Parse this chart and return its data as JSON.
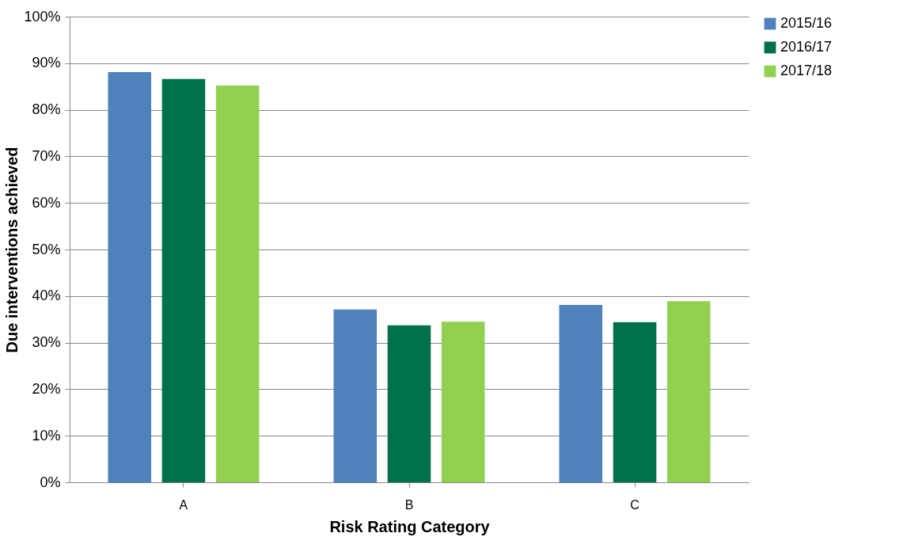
{
  "chart_data": {
    "type": "bar",
    "xlabel": "Risk Rating Category",
    "ylabel": "Due interventions achieved",
    "categories": [
      "A",
      "B",
      "C"
    ],
    "series": [
      {
        "name": "2015/16",
        "color": "#4f81bd",
        "values": [
          88.1,
          37.1,
          38.1
        ]
      },
      {
        "name": "2016/17",
        "color": "#00704a",
        "values": [
          86.6,
          33.7,
          34.4
        ]
      },
      {
        "name": "2017/18",
        "color": "#92d050",
        "values": [
          85.2,
          34.5,
          38.9
        ]
      }
    ],
    "ylim": [
      0,
      100
    ],
    "yticks": [
      {
        "value": 0,
        "label": "0%"
      },
      {
        "value": 10,
        "label": "10%"
      },
      {
        "value": 20,
        "label": "20%"
      },
      {
        "value": 30,
        "label": "30%"
      },
      {
        "value": 40,
        "label": "40%"
      },
      {
        "value": 50,
        "label": "50%"
      },
      {
        "value": 60,
        "label": "60%"
      },
      {
        "value": 70,
        "label": "70%"
      },
      {
        "value": 80,
        "label": "80%"
      },
      {
        "value": 90,
        "label": "90%"
      },
      {
        "value": 100,
        "label": "100%"
      }
    ],
    "grid": "y",
    "legend": "right"
  }
}
